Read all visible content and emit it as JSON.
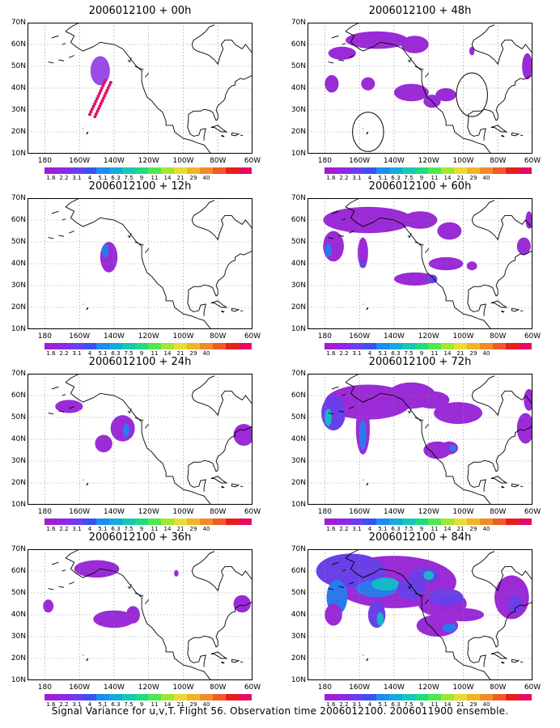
{
  "panels": [
    {
      "title": "2006012100 + 00h"
    },
    {
      "title": "2006012100 + 48h"
    },
    {
      "title": "2006012100 + 12h"
    },
    {
      "title": "2006012100 + 60h"
    },
    {
      "title": "2006012100 + 24h"
    },
    {
      "title": "2006012100 + 72h"
    },
    {
      "title": "2006012100 + 36h"
    },
    {
      "title": "2006012100 + 84h"
    }
  ],
  "axes": {
    "y": [
      "70N",
      "60N",
      "50N",
      "40N",
      "30N",
      "20N",
      "10N"
    ],
    "x": [
      "180",
      "160W",
      "140W",
      "120W",
      "100W",
      "80W",
      "60W"
    ]
  },
  "colorbar": {
    "labels": [
      "1.6",
      "2.2",
      "3.1",
      "4",
      "5.1",
      "6.3",
      "7.5",
      "9",
      "11",
      "14",
      "21",
      "29",
      "40"
    ],
    "colors": [
      "#a01ed2",
      "#8c28e6",
      "#6e3cf0",
      "#3c50f0",
      "#1e8cf0",
      "#14aadc",
      "#14c8b4",
      "#1edc82",
      "#50e650",
      "#a0e632",
      "#e6dc32",
      "#f0b428",
      "#f08c28",
      "#f05a28",
      "#e61e1e",
      "#e60a64"
    ]
  },
  "caption": "Signal Variance for u,v,T. Flight 56. Observation time 2006012100. 2006011900 ensemble."
}
